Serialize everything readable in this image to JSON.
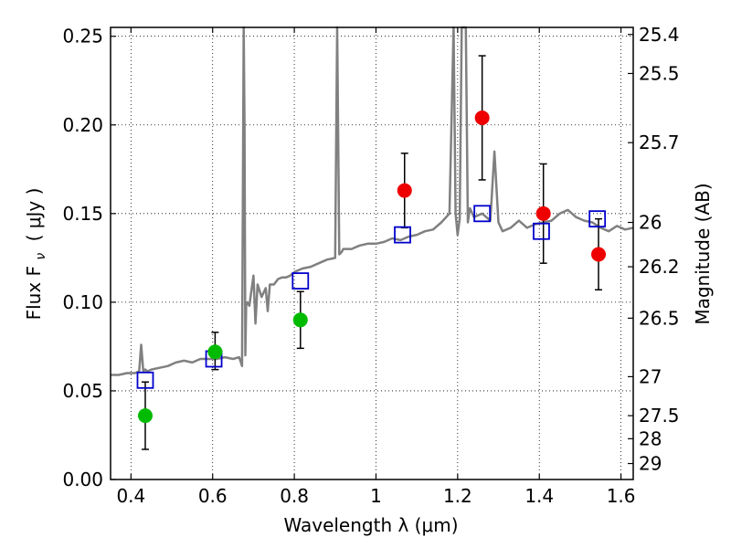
{
  "chart_data": {
    "type": "scatter",
    "xlabel": "Wavelength  λ (μm)",
    "ylabel": "Flux  F",
    "ylabel_subscript": "ν",
    "ylabel_unit": "( μJy )",
    "y2label": "Magnitude (AB)",
    "xlim": [
      0.35,
      1.63
    ],
    "ylim": [
      0.0,
      0.255
    ],
    "xticks": [
      0.4,
      0.6,
      0.8,
      1.0,
      1.2,
      1.4,
      1.6
    ],
    "xtick_labels": [
      "0.4",
      "0.6",
      "0.8",
      "1",
      "1.2",
      "1.4",
      "1.6"
    ],
    "yticks": [
      0.0,
      0.05,
      0.1,
      0.15,
      0.2,
      0.25
    ],
    "ytick_labels": [
      "0.00",
      "0.05",
      "0.10",
      "0.15",
      "0.20",
      "0.25"
    ],
    "y2_ticks": [
      {
        "label": "25.4",
        "flux": 0.251
      },
      {
        "label": "25.5",
        "flux": 0.229
      },
      {
        "label": "25.7",
        "flux": 0.19
      },
      {
        "label": "26",
        "flux": 0.145
      },
      {
        "label": "26.2",
        "flux": 0.12
      },
      {
        "label": "26.5",
        "flux": 0.091
      },
      {
        "label": "27",
        "flux": 0.058
      },
      {
        "label": "27.5",
        "flux": 0.036
      },
      {
        "label": "28",
        "flux": 0.023
      },
      {
        "label": "29",
        "flux": 0.009
      }
    ],
    "grid": true,
    "colors": {
      "spectrum": "#808080",
      "model_box": "#0000cc",
      "optical_point": "#00bb00",
      "nir_point": "#ee0000",
      "errorbar": "#000000"
    },
    "spectrum": {
      "x": [
        0.35,
        0.37,
        0.39,
        0.41,
        0.42,
        0.425,
        0.43,
        0.435,
        0.44,
        0.45,
        0.47,
        0.49,
        0.51,
        0.53,
        0.55,
        0.57,
        0.59,
        0.61,
        0.63,
        0.65,
        0.665,
        0.672,
        0.676,
        0.678,
        0.68,
        0.682,
        0.685,
        0.69,
        0.7,
        0.705,
        0.71,
        0.72,
        0.73,
        0.735,
        0.74,
        0.75,
        0.76,
        0.77,
        0.78,
        0.79,
        0.8,
        0.81,
        0.82,
        0.84,
        0.86,
        0.88,
        0.9,
        0.905,
        0.91,
        0.915,
        0.92,
        0.94,
        0.96,
        0.98,
        1.0,
        1.02,
        1.04,
        1.06,
        1.08,
        1.1,
        1.12,
        1.14,
        1.16,
        1.18,
        1.19,
        1.195,
        1.2,
        1.205,
        1.21,
        1.22,
        1.225,
        1.23,
        1.24,
        1.26,
        1.28,
        1.29,
        1.3,
        1.31,
        1.33,
        1.35,
        1.37,
        1.39,
        1.41,
        1.43,
        1.45,
        1.47,
        1.49,
        1.51,
        1.53,
        1.55,
        1.57,
        1.59,
        1.61,
        1.63
      ],
      "y": [
        0.059,
        0.059,
        0.06,
        0.06,
        0.061,
        0.076,
        0.061,
        0.062,
        0.061,
        0.062,
        0.063,
        0.064,
        0.066,
        0.067,
        0.066,
        0.068,
        0.068,
        0.068,
        0.069,
        0.068,
        0.069,
        0.064,
        0.255,
        0.2,
        0.07,
        0.098,
        0.1,
        0.098,
        0.115,
        0.088,
        0.11,
        0.103,
        0.108,
        0.095,
        0.11,
        0.11,
        0.113,
        0.114,
        0.114,
        0.115,
        0.117,
        0.118,
        0.119,
        0.12,
        0.122,
        0.124,
        0.125,
        0.255,
        0.127,
        0.128,
        0.13,
        0.13,
        0.132,
        0.133,
        0.133,
        0.134,
        0.136,
        0.135,
        0.137,
        0.138,
        0.14,
        0.141,
        0.145,
        0.15,
        0.255,
        0.15,
        0.138,
        0.147,
        0.255,
        0.255,
        0.145,
        0.153,
        0.148,
        0.15,
        0.146,
        0.185,
        0.145,
        0.14,
        0.142,
        0.146,
        0.142,
        0.144,
        0.145,
        0.146,
        0.15,
        0.152,
        0.148,
        0.146,
        0.145,
        0.142,
        0.14,
        0.143,
        0.141,
        0.142
      ]
    },
    "model_boxes": [
      {
        "x": 0.435,
        "y": 0.056
      },
      {
        "x": 0.603,
        "y": 0.068
      },
      {
        "x": 0.815,
        "y": 0.112
      },
      {
        "x": 1.065,
        "y": 0.138
      },
      {
        "x": 1.26,
        "y": 0.15
      },
      {
        "x": 1.405,
        "y": 0.14
      },
      {
        "x": 1.542,
        "y": 0.147
      }
    ],
    "points": [
      {
        "x": 0.435,
        "y": 0.036,
        "yerr_lo": 0.019,
        "yerr_hi": 0.019,
        "band": "optical"
      },
      {
        "x": 0.606,
        "y": 0.072,
        "yerr_lo": 0.01,
        "yerr_hi": 0.011,
        "band": "optical"
      },
      {
        "x": 0.815,
        "y": 0.09,
        "yerr_lo": 0.016,
        "yerr_hi": 0.016,
        "band": "optical"
      },
      {
        "x": 1.07,
        "y": 0.163,
        "yerr_lo": 0.021,
        "yerr_hi": 0.021,
        "band": "nir"
      },
      {
        "x": 1.26,
        "y": 0.204,
        "yerr_lo": 0.035,
        "yerr_hi": 0.035,
        "band": "nir"
      },
      {
        "x": 1.41,
        "y": 0.15,
        "yerr_lo": 0.028,
        "yerr_hi": 0.028,
        "band": "nir"
      },
      {
        "x": 1.545,
        "y": 0.127,
        "yerr_lo": 0.02,
        "yerr_hi": 0.02,
        "band": "nir"
      }
    ]
  }
}
